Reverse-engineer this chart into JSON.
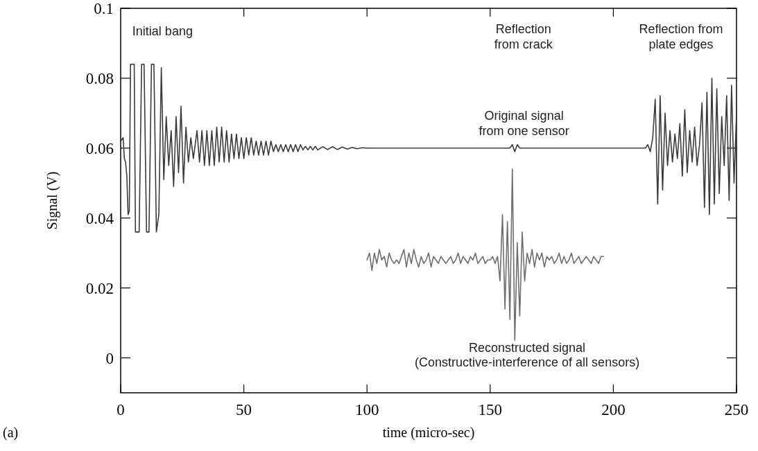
{
  "chart_data": {
    "type": "line",
    "xlabel": "time (micro-sec)",
    "ylabel": "Signal (V)",
    "xlim": [
      0,
      250
    ],
    "xticks": [
      0,
      50,
      100,
      150,
      200,
      250
    ],
    "ylim": [
      -0.01,
      0.1
    ],
    "yticks": [
      0,
      0.02,
      0.04,
      0.06,
      0.08,
      0.1
    ],
    "grid": false,
    "marker": "none",
    "line_style": "solid",
    "series": [
      {
        "color": "#3a3a3a",
        "x": [
          0,
          1,
          1.5,
          2,
          2.5,
          3,
          3.5,
          4,
          5.5,
          6,
          7.5,
          8.5,
          9.5,
          10.5,
          11.5,
          12.5,
          13.5,
          14.5,
          15.5,
          16.5,
          17.5,
          18.5,
          19.5,
          20.5,
          21.5,
          22.5,
          23.5,
          24.5,
          25.5,
          26.5,
          27.5,
          28.5,
          29.5,
          31,
          32,
          33,
          34,
          35,
          36,
          37,
          38,
          39,
          40,
          41,
          42,
          43,
          44,
          45,
          46,
          47,
          48,
          49,
          50,
          51,
          52,
          53,
          54,
          55,
          56,
          57,
          58,
          59,
          60,
          61,
          62,
          63,
          64,
          65,
          66,
          67,
          68,
          69,
          70,
          71,
          72,
          73,
          74,
          75,
          76,
          77,
          78,
          79,
          80,
          82,
          84,
          86,
          88,
          90,
          92,
          94,
          96,
          98,
          100,
          130,
          158,
          159,
          160,
          161,
          162,
          213,
          214,
          215,
          216,
          217,
          218,
          219,
          220,
          221,
          222,
          223,
          224,
          225,
          226,
          227,
          228,
          229,
          230,
          231,
          232,
          233,
          234,
          235,
          236,
          237,
          238,
          239,
          240,
          241,
          242,
          243,
          244,
          245,
          246,
          247,
          248,
          249,
          250
        ],
        "values": [
          0.062,
          0.063,
          0.057,
          0.056,
          0.052,
          0.041,
          0.042,
          0.084,
          0.084,
          0.036,
          0.036,
          0.084,
          0.084,
          0.036,
          0.036,
          0.084,
          0.084,
          0.036,
          0.041,
          0.083,
          0.051,
          0.069,
          0.055,
          0.065,
          0.049,
          0.069,
          0.053,
          0.072,
          0.05,
          0.066,
          0.056,
          0.063,
          0.057,
          0.065,
          0.056,
          0.065,
          0.055,
          0.065,
          0.055,
          0.065,
          0.055,
          0.066,
          0.056,
          0.066,
          0.056,
          0.065,
          0.056,
          0.064,
          0.057,
          0.064,
          0.057,
          0.063,
          0.057,
          0.063,
          0.058,
          0.063,
          0.058,
          0.062,
          0.058,
          0.062,
          0.058,
          0.062,
          0.058,
          0.062,
          0.059,
          0.061,
          0.059,
          0.061,
          0.059,
          0.061,
          0.059,
          0.061,
          0.059,
          0.061,
          0.059,
          0.061,
          0.0595,
          0.0605,
          0.0595,
          0.0605,
          0.0595,
          0.0605,
          0.0595,
          0.0604,
          0.0596,
          0.0604,
          0.0596,
          0.0603,
          0.0597,
          0.0602,
          0.0598,
          0.0601,
          0.06,
          0.06,
          0.06,
          0.061,
          0.059,
          0.061,
          0.06,
          0.06,
          0.061,
          0.059,
          0.063,
          0.074,
          0.044,
          0.075,
          0.048,
          0.07,
          0.055,
          0.065,
          0.056,
          0.064,
          0.057,
          0.067,
          0.052,
          0.071,
          0.053,
          0.065,
          0.056,
          0.066,
          0.055,
          0.061,
          0.073,
          0.043,
          0.076,
          0.041,
          0.08,
          0.044,
          0.077,
          0.047,
          0.069,
          0.055,
          0.075,
          0.045,
          0.078,
          0.05,
          0.07
        ]
      },
      {
        "color": "#6e6e6e",
        "x": [
          100,
          101,
          102,
          103,
          104,
          105,
          106,
          107,
          108,
          109,
          110,
          111,
          112,
          113,
          114,
          115,
          116,
          117,
          118,
          119,
          120,
          121,
          122,
          123,
          124,
          125,
          126,
          127,
          128,
          129,
          130,
          131,
          132,
          133,
          134,
          135,
          136,
          137,
          138,
          139,
          140,
          141,
          142,
          143,
          144,
          145,
          146,
          147,
          148,
          149,
          150,
          151,
          152,
          153,
          154,
          155,
          156,
          157,
          158,
          159,
          160,
          161,
          162,
          163,
          164,
          165,
          166,
          167,
          168,
          169,
          170,
          171,
          172,
          173,
          174,
          175,
          176,
          177,
          178,
          179,
          180,
          181,
          182,
          183,
          184,
          185,
          186,
          187,
          188,
          189,
          190,
          191,
          192,
          193,
          194,
          195,
          196
        ],
        "values": [
          0.028,
          0.03,
          0.025,
          0.03,
          0.027,
          0.031,
          0.028,
          0.029,
          0.026,
          0.03,
          0.028,
          0.027,
          0.028,
          0.027,
          0.029,
          0.031,
          0.026,
          0.03,
          0.027,
          0.031,
          0.028,
          0.026,
          0.029,
          0.027,
          0.028,
          0.03,
          0.026,
          0.029,
          0.028,
          0.027,
          0.029,
          0.028,
          0.027,
          0.028,
          0.029,
          0.027,
          0.028,
          0.03,
          0.027,
          0.029,
          0.028,
          0.027,
          0.029,
          0.028,
          0.03,
          0.027,
          0.028,
          0.029,
          0.027,
          0.028,
          0.028,
          0.029,
          0.027,
          0.029,
          0.022,
          0.041,
          0.014,
          0.039,
          0.011,
          0.054,
          0.005,
          0.033,
          0.012,
          0.036,
          0.022,
          0.03,
          0.027,
          0.031,
          0.026,
          0.03,
          0.028,
          0.03,
          0.026,
          0.029,
          0.028,
          0.029,
          0.027,
          0.028,
          0.03,
          0.027,
          0.029,
          0.027,
          0.028,
          0.03,
          0.027,
          0.028,
          0.029,
          0.027,
          0.028,
          0.029,
          0.028,
          0.027,
          0.029,
          0.028,
          0.027,
          0.029,
          0.029
        ]
      }
    ],
    "annotations": [
      "Initial bang",
      "Reflection\nfrom crack",
      "Reflection from\nplate edges",
      "Original signal\nfrom one sensor",
      "Reconstructed signal\n(Constructive-interference of all sensors)",
      "(a)"
    ]
  }
}
